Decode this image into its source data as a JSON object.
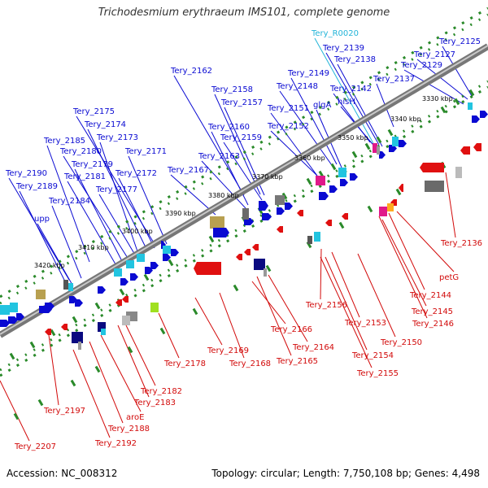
{
  "title": "Trichodesmium erythraeum IMS101, complete genome",
  "footer": {
    "accession": "Accession: NC_008312",
    "topology": "Topology: circular; Length: 7,750,108 bp; Genes: 4,498"
  },
  "colors": {
    "forward_label": "#0a0ad2",
    "reverse_label": "#d20a0a",
    "rna_label": "#22b4d8",
    "backbone": "#777777",
    "tick": "#2a8a2a"
  },
  "scale_labels": [
    "3330 kbp",
    "3340 kbp",
    "3350 kbp",
    "3360 kbp",
    "3370 kbp",
    "3380 kbp",
    "3390 kbp",
    "3400 kbp",
    "3410 kbp",
    "3420 kbp"
  ],
  "forward_genes": [
    "Tery_R0020",
    "Tery_2125",
    "Tery_2139",
    "Tery_2127",
    "Tery_2138",
    "Tery_2129",
    "Tery_2137",
    "Tery_2142",
    "Tery_2149",
    "Tery_2148",
    "hisH",
    "Tery_2162",
    "Tery_2158",
    "Tery_2157",
    "glgA",
    "Tery_2151",
    "Tery_2175",
    "Tery_2160",
    "Tery_2152",
    "Tery_2174",
    "Tery_2159",
    "Tery_2173",
    "Tery_2185",
    "Tery_2180",
    "Tery_2171",
    "Tery_2163",
    "Tery_2179",
    "Tery_2190",
    "Tery_2172",
    "Tery_2181",
    "Tery_2167",
    "Tery_2189",
    "Tery_2177",
    "Tery_2184",
    "upp"
  ],
  "reverse_genes": [
    "Tery_2136",
    "petG",
    "Tery_2144",
    "Tery_2156",
    "Tery_2145",
    "Tery_2146",
    "Tery_2153",
    "Tery_2150",
    "Tery_2166",
    "Tery_2164",
    "Tery_2154",
    "Tery_2169",
    "Tery_2178",
    "Tery_2168",
    "Tery_2165",
    "Tery_2155",
    "Tery_2182",
    "Tery_2183",
    "Tery_2197",
    "aroE",
    "Tery_2188",
    "Tery_2192",
    "Tery_2207"
  ]
}
